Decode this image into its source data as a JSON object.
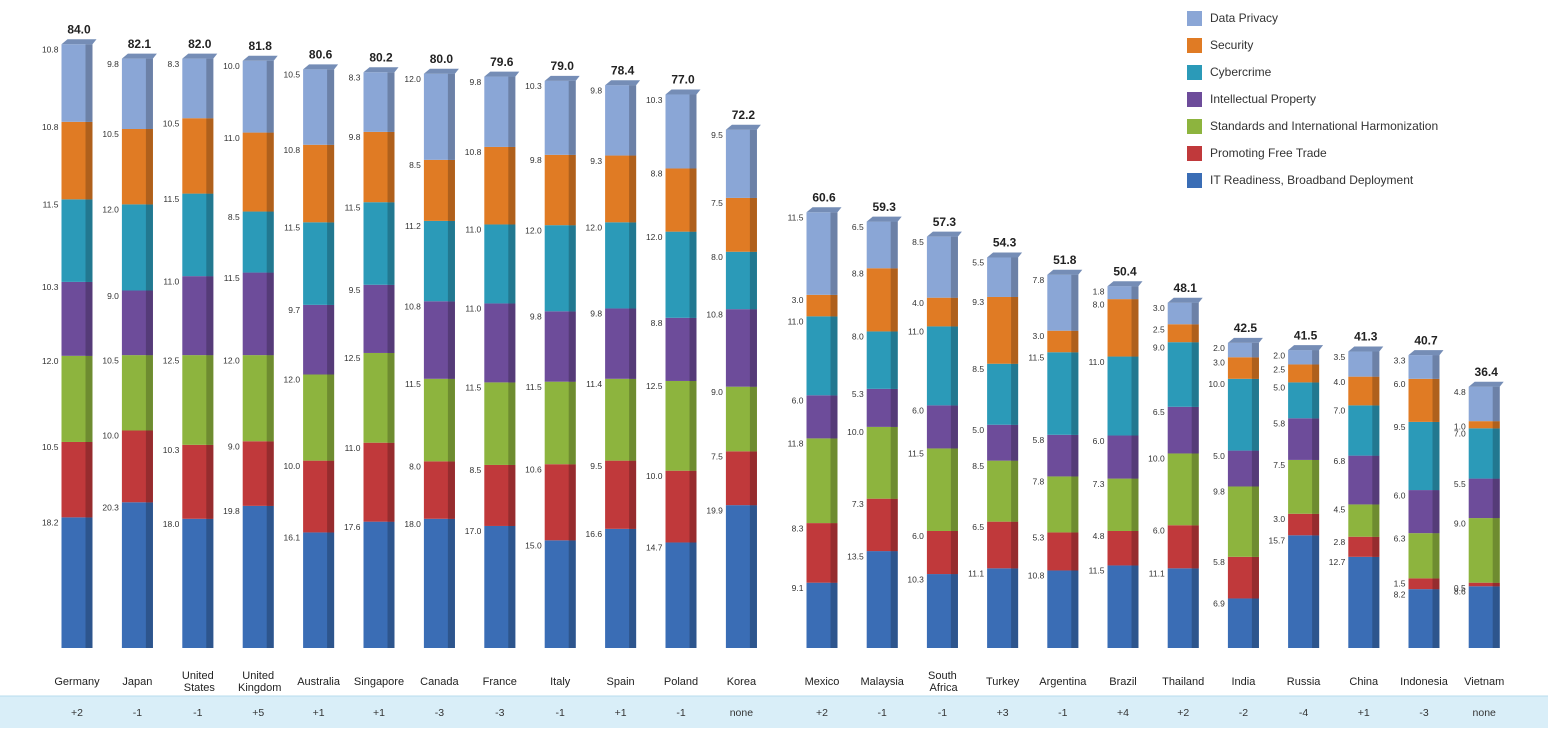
{
  "chart_data": {
    "type": "stacked-bar",
    "categories": [
      "Germany",
      "Japan",
      "United States",
      "United Kingdom",
      "Australia",
      "Singapore",
      "Canada",
      "France",
      "Italy",
      "Spain",
      "Poland",
      "Korea",
      "Mexico",
      "Malaysia",
      "South Africa",
      "Turkey",
      "Argentina",
      "Brazil",
      "Thailand",
      "India",
      "Russia",
      "China",
      "Indonesia",
      "Vietnam"
    ],
    "totals": [
      84.0,
      82.1,
      82.0,
      81.8,
      80.6,
      80.2,
      80.0,
      79.6,
      79.0,
      78.4,
      77.0,
      72.2,
      60.6,
      59.3,
      57.3,
      54.3,
      51.8,
      50.4,
      48.1,
      42.5,
      41.5,
      41.3,
      40.7,
      36.4
    ],
    "total_labels": [
      "84.0",
      "82.1",
      "82.0",
      "81.8",
      "80.6",
      "80.2",
      "80.0",
      "79.6",
      "79.0",
      "78.4",
      "77.0",
      "72.2",
      "60.6",
      "59.3",
      "57.3",
      "54.3",
      "51.8",
      "50.4",
      "48.1",
      "42.5",
      "41.5",
      "41.3",
      "40.7",
      "36.4"
    ],
    "change": [
      "+2",
      "-1",
      "-1",
      "+5",
      "+1",
      "+1",
      "-3",
      "-3",
      "-1",
      "+1",
      "-1",
      "none",
      "+2",
      "-1",
      "-1",
      "+3",
      "-1",
      "+4",
      "+2",
      "-2",
      "-4",
      "+1",
      "-3",
      "none"
    ],
    "series": [
      {
        "name": "IT Readiness, Broadband Deployment",
        "color": "#3a6db5",
        "values": [
          18.2,
          20.3,
          18.0,
          19.8,
          16.1,
          17.6,
          18.0,
          17.0,
          15.0,
          16.6,
          14.7,
          19.9,
          9.1,
          13.5,
          10.3,
          11.1,
          10.8,
          11.5,
          11.1,
          6.9,
          15.7,
          12.7,
          8.2,
          8.6
        ],
        "value_labels": [
          "18.2",
          "20.3",
          "18.0",
          "19.8",
          "16.1",
          "17.6",
          "18.0",
          "17.0",
          "15.0",
          "16.6",
          "14.7",
          "19.9",
          "9.1",
          "13.5",
          "10.3",
          "11.1",
          "10.8",
          "11.5",
          "11.1",
          "6.9",
          "15.7",
          "12.7",
          "8.2",
          "8.6"
        ]
      },
      {
        "name": "Promoting Free Trade",
        "color": "#c0393b",
        "values": [
          10.5,
          10.0,
          10.3,
          9.0,
          10.0,
          11.0,
          8.0,
          8.5,
          10.6,
          9.5,
          10.0,
          7.5,
          8.3,
          7.3,
          6.0,
          6.5,
          5.3,
          4.8,
          6.0,
          5.8,
          3.0,
          2.8,
          1.5,
          0.5
        ],
        "value_labels": [
          "10.5",
          "10.0",
          "10.3",
          "9.0",
          "10.0",
          "11.0",
          "8.0",
          "8.5",
          "10.6",
          "9.5",
          "10.0",
          "7.5",
          "8.3",
          "7.3",
          "6.0",
          "6.5",
          "5.3",
          "4.8",
          "6.0",
          "5.8",
          "3.0",
          "2.8",
          "1.5",
          "0.5"
        ]
      },
      {
        "name": "Standards and International Harmonization",
        "color": "#8db43e",
        "values": [
          12.0,
          10.5,
          12.5,
          12.0,
          12.0,
          12.5,
          11.5,
          11.5,
          11.5,
          11.4,
          12.5,
          9.0,
          11.8,
          10.0,
          11.5,
          8.5,
          7.8,
          7.3,
          10.0,
          9.8,
          7.5,
          4.5,
          6.3,
          9.0
        ],
        "value_labels": [
          "12.0",
          "10.5",
          "12.5",
          "12.0",
          "12.0",
          "12.5",
          "11.5",
          "11.5",
          "11.5",
          "11.4",
          "12.5",
          "9.0",
          "11.8",
          "10.0",
          "11.5",
          "8.5",
          "7.8",
          "7.3",
          "10.0",
          "9.8",
          "7.5",
          "4.5",
          "6.3",
          "9.0"
        ]
      },
      {
        "name": "Intellectual Property",
        "color": "#6d4c9a",
        "values": [
          10.3,
          9.0,
          11.0,
          11.5,
          9.7,
          9.5,
          10.8,
          11.0,
          9.8,
          9.8,
          8.8,
          10.8,
          6.0,
          5.3,
          6.0,
          5.0,
          5.8,
          6.0,
          6.5,
          5.0,
          5.8,
          6.8,
          6.0,
          5.5
        ],
        "value_labels": [
          "10.3",
          "9.0",
          "11.0",
          "11.5",
          "9.7",
          "9.5",
          "10.8",
          "11.0",
          "9.8",
          "9.8",
          "8.8",
          "10.8",
          "6.0",
          "5.3",
          "6.0",
          "5.0",
          "5.8",
          "6.0",
          "6.5",
          "5.0",
          "5.8",
          "6.8",
          "6.0",
          "5.5"
        ]
      },
      {
        "name": "Cybercrime",
        "color": "#2b9ab8",
        "values": [
          11.5,
          12.0,
          11.5,
          8.5,
          11.5,
          11.5,
          11.2,
          11.0,
          12.0,
          12.0,
          12.0,
          8.0,
          11.0,
          8.0,
          11.0,
          8.5,
          11.5,
          11.0,
          9.0,
          10.0,
          5.0,
          7.0,
          9.5,
          7.0
        ],
        "value_labels": [
          "11.5",
          "12.0",
          "11.5",
          "8.5",
          "11.5",
          "11.5",
          "11.2",
          "11.0",
          "12.0",
          "12.0",
          "12.0",
          "8.0",
          "11.0",
          "8.0",
          "11.0",
          "8.5",
          "11.5",
          "11.0",
          "9.0",
          "10.0",
          "5.0",
          "7.0",
          "9.5",
          "7.0"
        ]
      },
      {
        "name": "Security",
        "color": "#e07b24",
        "values": [
          10.8,
          10.5,
          10.5,
          11.0,
          10.8,
          9.8,
          8.5,
          10.8,
          9.8,
          9.3,
          8.8,
          7.5,
          3.0,
          8.8,
          4.0,
          9.3,
          3.0,
          8.0,
          2.5,
          3.0,
          2.5,
          4.0,
          6.0,
          1.0
        ],
        "value_labels": [
          "10.8",
          "10.5",
          "10.5",
          "11.0",
          "10.8",
          "9.8",
          "8.5",
          "10.8",
          "9.8",
          "9.3",
          "8.8",
          "7.5",
          "3.0",
          "8.8",
          "4.0",
          "9.3",
          "3.0",
          "8.0",
          "2.5",
          "3.0",
          "2.5",
          "4.0",
          "6.0",
          "1.0"
        ]
      },
      {
        "name": "Data Privacy",
        "color": "#8aa6d6",
        "values": [
          10.8,
          9.8,
          8.3,
          10.0,
          10.5,
          8.3,
          12.0,
          9.8,
          10.3,
          9.8,
          10.3,
          9.5,
          11.5,
          6.5,
          8.5,
          5.5,
          7.8,
          1.8,
          3.0,
          2.0,
          2.0,
          3.5,
          3.3,
          4.8
        ],
        "value_labels": [
          "10.8",
          "9.8",
          "8.3",
          "10.0",
          "10.5",
          "8.3",
          "12.0",
          "9.8",
          "10.3",
          "9.8",
          "10.3",
          "9.5",
          "11.5",
          "6.5",
          "8.5",
          "5.5",
          "7.8",
          "1.8",
          "3.0",
          "2.0",
          "2.0",
          "3.5",
          "3.3",
          "4.8"
        ]
      }
    ]
  }
}
